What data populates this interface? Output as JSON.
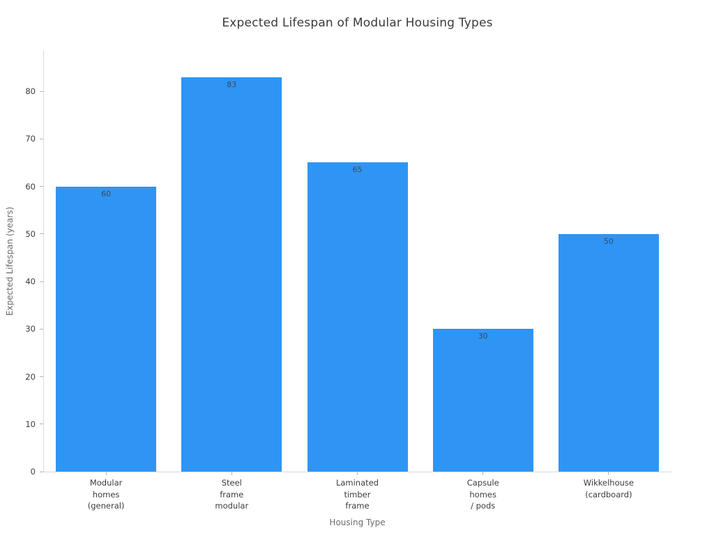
{
  "chart_data": {
    "type": "bar",
    "title": "Expected Lifespan of Modular Housing Types",
    "xlabel": "Housing Type",
    "ylabel": "Expected Lifespan (years)",
    "categories": [
      "Modular\nhomes\n(general)",
      "Steel\nframe\nmodular",
      "Laminated\ntimber\nframe",
      "Capsule\nhomes\n/ pods",
      "Wikkelhouse\n(cardboard)"
    ],
    "values": [
      60,
      83,
      65,
      30,
      50
    ],
    "bar_labels": [
      "60",
      "83",
      "65",
      "30",
      "50"
    ],
    "ylim": [
      0,
      88.5
    ],
    "yticks": [
      0,
      10,
      20,
      30,
      40,
      50,
      60,
      70,
      80
    ],
    "grid": false,
    "legend": "none",
    "bar_label_position": "inside-top",
    "colors": {
      "bar": "#2e95f5",
      "title_text": "#3a3a3a",
      "tick_text": "#3b3b3b",
      "axis_title_text": "#6b6b6b",
      "bar_label_text": "#3c4a57",
      "axis_line": "#d9d9d9",
      "tick_mark": "#b3b3b3",
      "background": "#ffffff"
    }
  }
}
